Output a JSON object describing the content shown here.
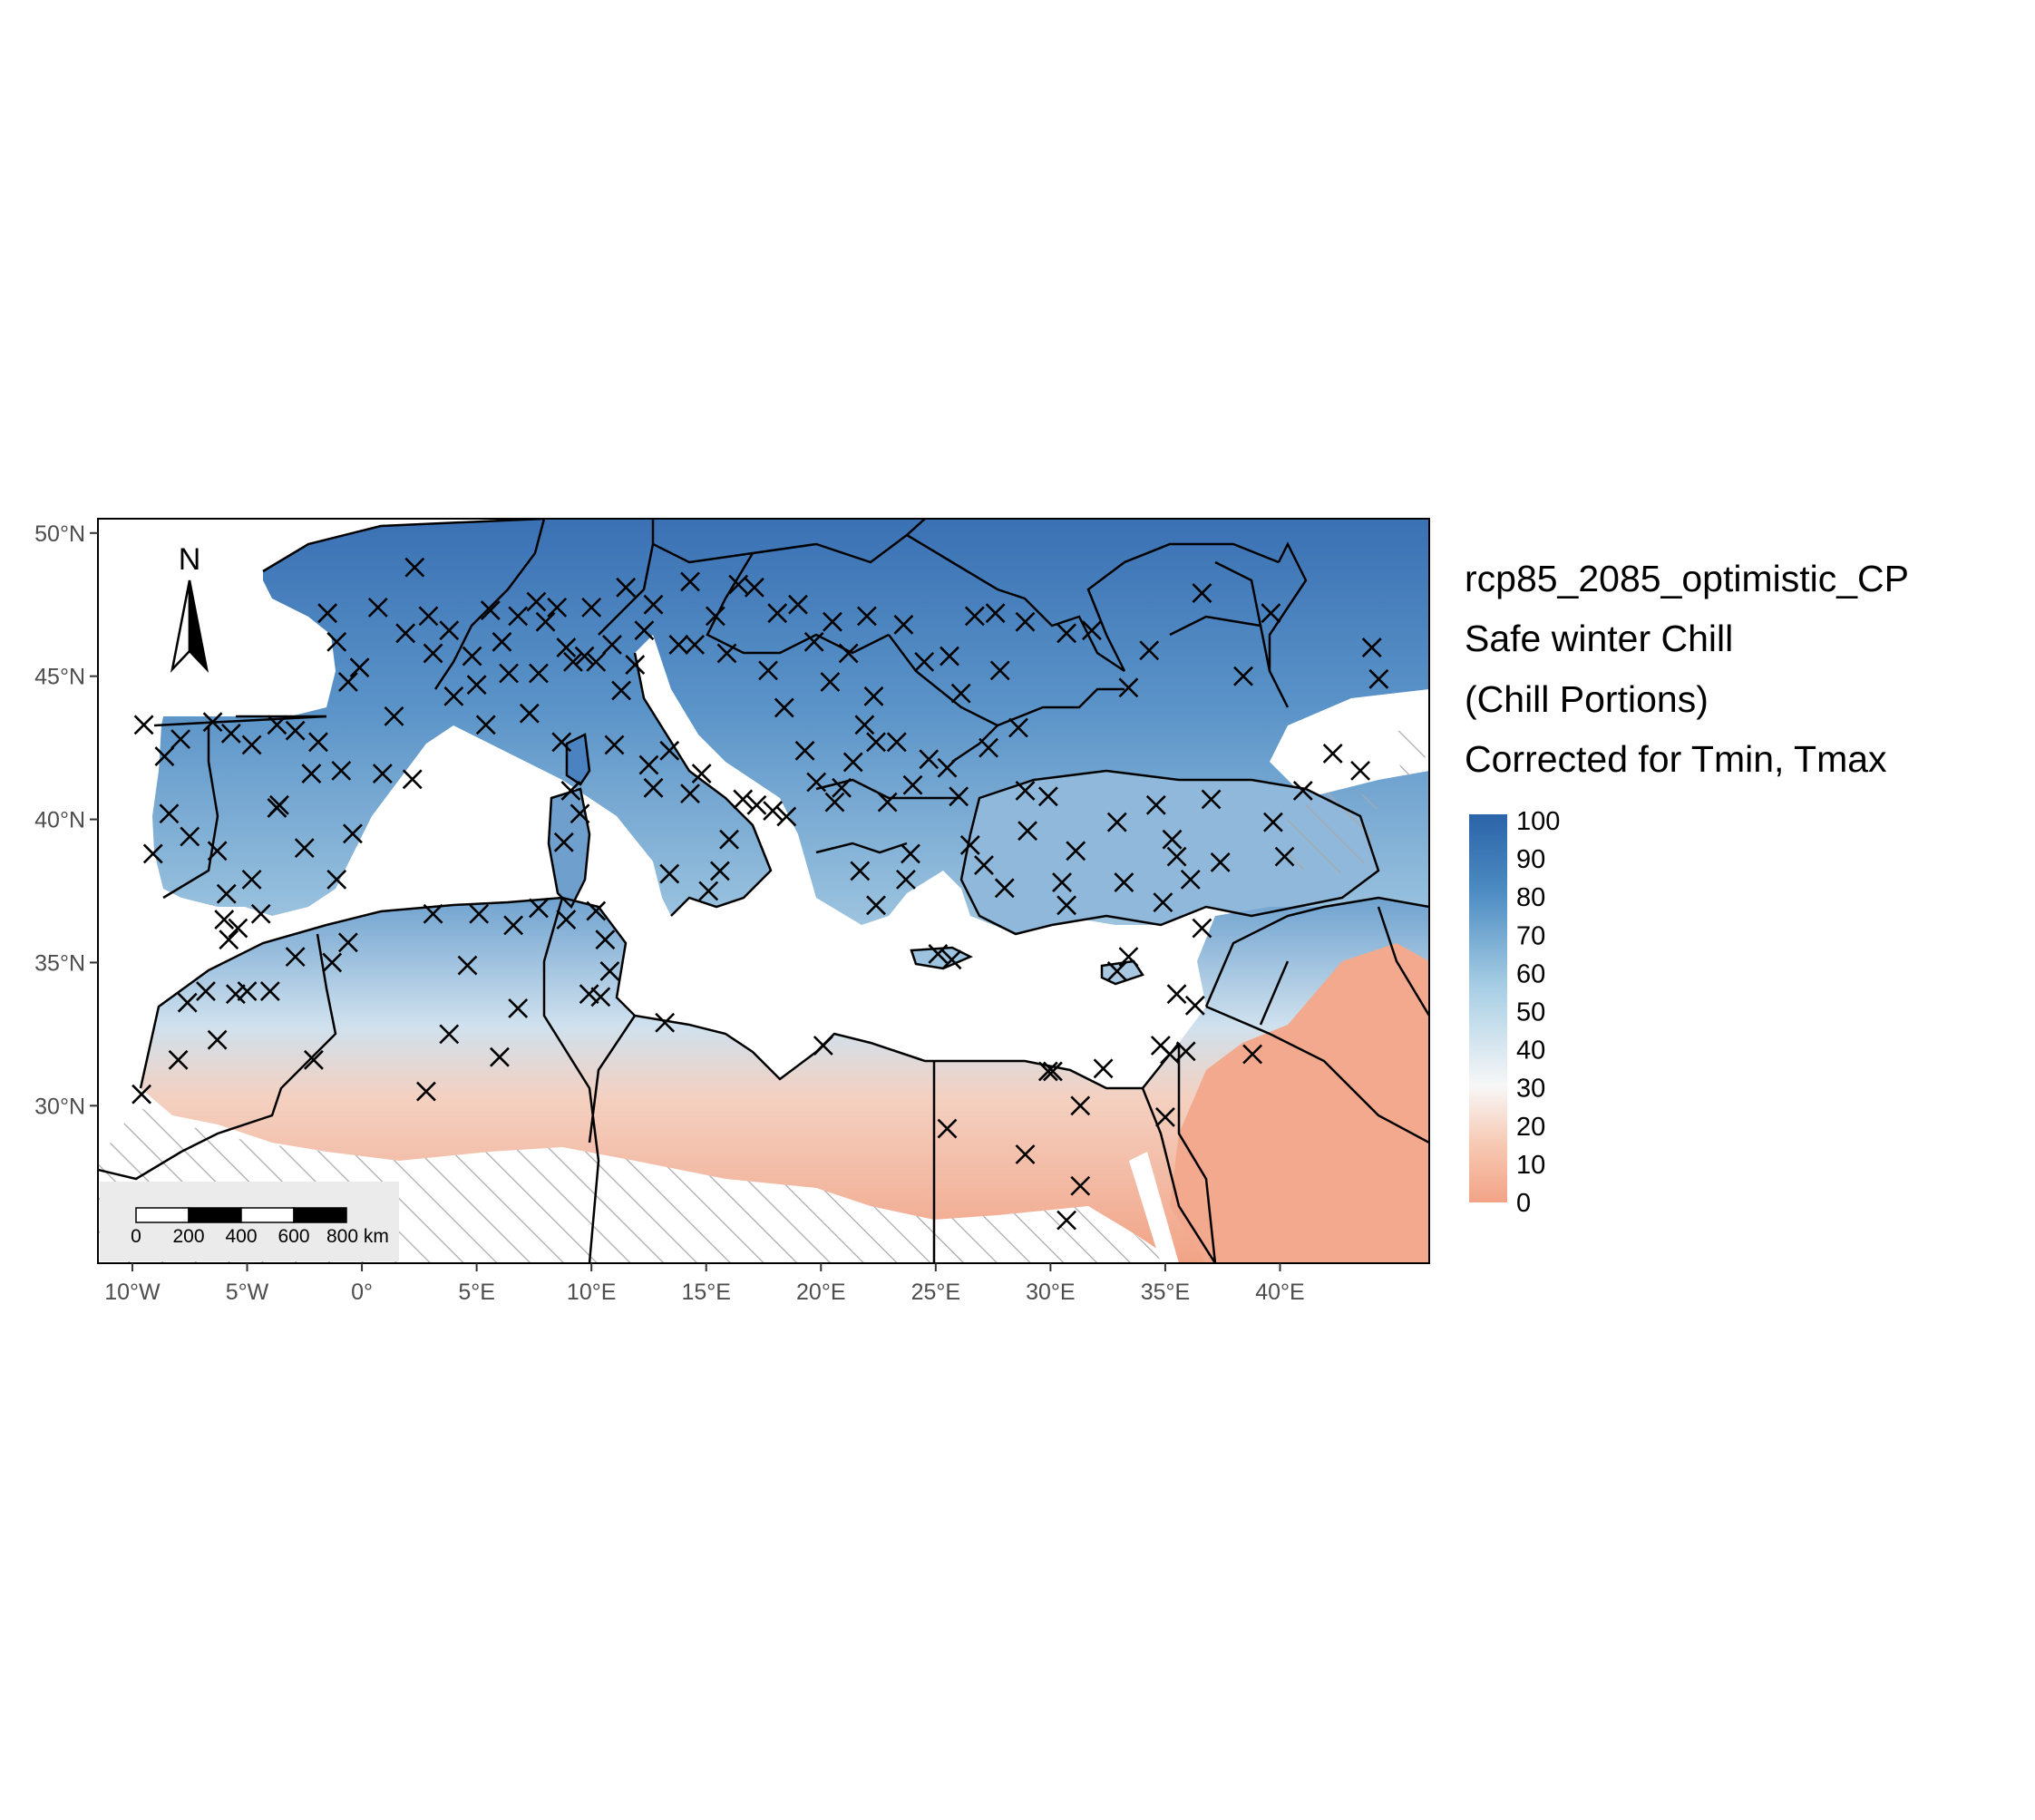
{
  "map": {
    "x_axis_ticks": [
      {
        "lon": -10,
        "label": "10°W"
      },
      {
        "lon": -5,
        "label": "5°W"
      },
      {
        "lon": 0,
        "label": "0°"
      },
      {
        "lon": 5,
        "label": "5°E"
      },
      {
        "lon": 10,
        "label": "10°E"
      },
      {
        "lon": 15,
        "label": "15°E"
      },
      {
        "lon": 20,
        "label": "20°E"
      },
      {
        "lon": 25,
        "label": "25°E"
      },
      {
        "lon": 30,
        "label": "30°E"
      },
      {
        "lon": 35,
        "label": "35°E"
      },
      {
        "lon": 40,
        "label": "40°E"
      }
    ],
    "y_axis_ticks": [
      {
        "lat": 50,
        "label": "50°N"
      },
      {
        "lat": 45,
        "label": "45°N"
      },
      {
        "lat": 40,
        "label": "40°N"
      },
      {
        "lat": 35,
        "label": "35°N"
      },
      {
        "lat": 30,
        "label": "30°N"
      }
    ],
    "extent": {
      "lon": [
        -11.5,
        46.5
      ],
      "lat": [
        24.5,
        50.5
      ]
    },
    "north_arrow_label": "N",
    "scale_bar": {
      "labels": [
        "0",
        "200",
        "400",
        "600",
        "800 km"
      ]
    },
    "station_marker": "x-marker",
    "hatched_area": "no-data"
  },
  "legend": {
    "title_lines": [
      "rcp85_2085_optimistic_CP",
      "Safe winter Chill",
      "(Chill Portions)",
      "Corrected for Tmin, Tmax"
    ],
    "labels": [
      "100",
      "90",
      "80",
      "70",
      "60",
      "50",
      "40",
      "30",
      "20",
      "10",
      "0"
    ],
    "range": [
      0,
      100
    ],
    "colors": {
      "high": "#2b64a8",
      "mid": "#f7f7f7",
      "low": "#f2a487"
    }
  }
}
